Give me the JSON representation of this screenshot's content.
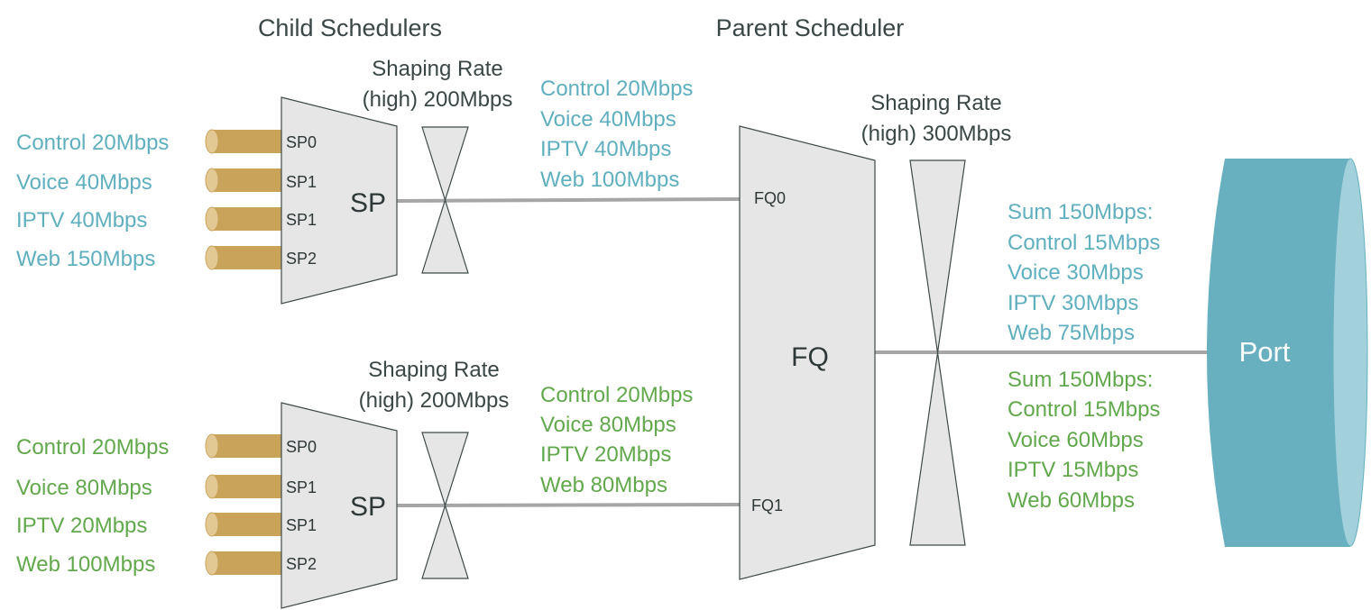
{
  "titles": {
    "child": "Child Schedulers",
    "parent": "Parent Scheduler"
  },
  "colors": {
    "teal": "#5fafbf",
    "green": "#62a84c",
    "queue": "#caa35a",
    "port": "#68b0c0",
    "port_face": "#a2d1dc"
  },
  "child_top": {
    "shaping_line1": "Shaping Rate",
    "shaping_line2": "(high) 200Mbps",
    "scheduler": "SP",
    "queues": [
      "SP0",
      "SP1",
      "SP1",
      "SP2"
    ],
    "inputs": [
      "Control 20Mbps",
      "Voice 40Mbps",
      "IPTV 40Mbps",
      "Web 150Mbps"
    ],
    "outputs": [
      "Control 20Mbps",
      "Voice 40Mbps",
      "IPTV 40Mbps",
      "Web 100Mbps"
    ]
  },
  "child_bottom": {
    "shaping_line1": "Shaping Rate",
    "shaping_line2": "(high) 200Mbps",
    "scheduler": "SP",
    "queues": [
      "SP0",
      "SP1",
      "SP1",
      "SP2"
    ],
    "inputs": [
      "Control 20Mbps",
      "Voice 80Mbps",
      "IPTV 20Mbps",
      "Web 100Mbps"
    ],
    "outputs": [
      "Control 20Mbps",
      "Voice 80Mbps",
      "IPTV 20Mbps",
      "Web 80Mbps"
    ]
  },
  "parent": {
    "scheduler": "FQ",
    "inputs": [
      "FQ0",
      "FQ1"
    ],
    "shaping_line1": "Shaping Rate",
    "shaping_line2": "(high) 300Mbps"
  },
  "port_output": {
    "teal": [
      "Sum 150Mbps:",
      "Control 15Mbps",
      "Voice 30Mbps",
      "IPTV 30Mbps",
      "Web 75Mbps"
    ],
    "green": [
      "Sum 150Mbps:",
      "Control 15Mbps",
      "Voice 60Mbps",
      "IPTV 15Mbps",
      "Web 60Mbps"
    ]
  },
  "port": {
    "label": "Port"
  }
}
